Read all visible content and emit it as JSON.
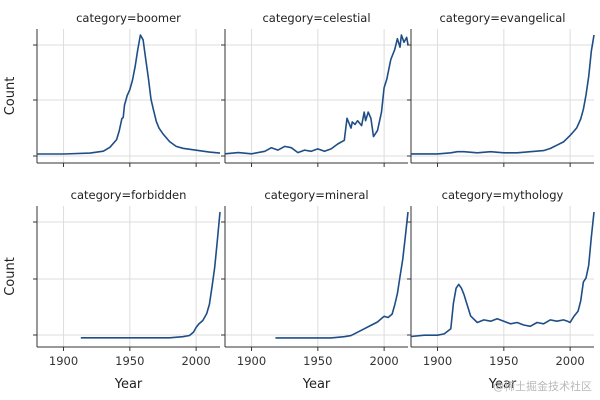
{
  "figure": {
    "ylabel": "Count",
    "xlabel": "Year",
    "line_color": "#1f4e86",
    "grid_color": "#dddddd",
    "watermark": "@稀土掘金技术社区"
  },
  "chart_data": [
    {
      "type": "line",
      "title": "category=boomer",
      "xlim": [
        1880,
        2018
      ],
      "x_ticks": [
        1900,
        1950,
        2000
      ],
      "y_ticks_shown": false,
      "series": [
        {
          "x": [
            1880,
            1900,
            1920,
            1930,
            1935,
            1940,
            1942,
            1944,
            1945,
            1946,
            1948,
            1950,
            1952,
            1954,
            1956,
            1958,
            1960,
            1962,
            1964,
            1966,
            1968,
            1970,
            1972,
            1975,
            1980,
            1985,
            1990,
            2000,
            2010,
            2018
          ],
          "y": [
            1,
            1,
            2,
            4,
            8,
            16,
            25,
            38,
            39,
            52,
            62,
            68,
            78,
            92,
            110,
            125,
            120,
            100,
            80,
            58,
            46,
            35,
            28,
            22,
            14,
            9,
            7,
            5,
            3,
            2
          ]
        }
      ]
    },
    {
      "type": "line",
      "title": "category=celestial",
      "xlim": [
        1880,
        2018
      ],
      "x_ticks": [
        1900,
        1950,
        2000
      ],
      "y_ticks_shown": false,
      "series": [
        {
          "x": [
            1880,
            1890,
            1900,
            1910,
            1915,
            1920,
            1925,
            1930,
            1935,
            1940,
            1945,
            1950,
            1955,
            1960,
            1965,
            1970,
            1972,
            1975,
            1976,
            1978,
            1980,
            1983,
            1985,
            1986,
            1988,
            1990,
            1992,
            1995,
            1998,
            2000,
            2002,
            2005,
            2008,
            2010,
            2012,
            2013,
            2015,
            2017,
            2018
          ],
          "y": [
            1,
            2,
            1,
            3,
            6,
            4,
            7,
            6,
            2,
            4,
            3,
            5,
            3,
            5,
            9,
            12,
            30,
            22,
            27,
            25,
            28,
            24,
            35,
            28,
            35,
            30,
            15,
            20,
            35,
            55,
            62,
            78,
            86,
            95,
            88,
            98,
            92,
            96,
            90
          ]
        }
      ]
    },
    {
      "type": "line",
      "title": "category=evangelical",
      "xlim": [
        1880,
        2018
      ],
      "x_ticks": [
        1900,
        1950,
        2000
      ],
      "y_ticks_shown": false,
      "series": [
        {
          "x": [
            1880,
            1900,
            1910,
            1915,
            1920,
            1930,
            1940,
            1950,
            1960,
            1970,
            1980,
            1985,
            1990,
            1995,
            2000,
            2003,
            2005,
            2008,
            2010,
            2012,
            2014,
            2016,
            2018
          ],
          "y": [
            1,
            1,
            2,
            3,
            3,
            2,
            3,
            2,
            2,
            3,
            4,
            6,
            9,
            12,
            18,
            22,
            25,
            33,
            42,
            55,
            72,
            95,
            110
          ]
        }
      ]
    },
    {
      "type": "line",
      "title": "category=forbidden",
      "xlim": [
        1880,
        2018
      ],
      "x_ticks": [
        1900,
        1950,
        2000
      ],
      "y_ticks_shown": false,
      "series": [
        {
          "x": [
            1913,
            1920,
            1930,
            1940,
            1950,
            1960,
            1970,
            1980,
            1990,
            1995,
            1998,
            2000,
            2002,
            2005,
            2008,
            2010,
            2012,
            2014,
            2016,
            2018
          ],
          "y": [
            1,
            1,
            1,
            1,
            1,
            1,
            1,
            1,
            2,
            3,
            6,
            10,
            13,
            16,
            22,
            30,
            45,
            62,
            85,
            110
          ]
        }
      ]
    },
    {
      "type": "line",
      "title": "category=mineral",
      "xlim": [
        1880,
        2018
      ],
      "x_ticks": [
        1900,
        1950,
        2000
      ],
      "y_ticks_shown": false,
      "series": [
        {
          "x": [
            1918,
            1930,
            1940,
            1950,
            1960,
            1970,
            1975,
            1980,
            1985,
            1990,
            1995,
            2000,
            2003,
            2006,
            2008,
            2010,
            2012,
            2014,
            2016,
            2018
          ],
          "y": [
            1,
            1,
            1,
            1,
            1,
            2,
            3,
            6,
            9,
            12,
            15,
            20,
            19,
            22,
            30,
            40,
            55,
            70,
            90,
            112
          ]
        }
      ]
    },
    {
      "type": "line",
      "title": "category=mythology",
      "xlim": [
        1880,
        2018
      ],
      "x_ticks": [
        1900,
        1950,
        2000
      ],
      "y_ticks_shown": false,
      "series": [
        {
          "x": [
            1880,
            1890,
            1900,
            1905,
            1910,
            1912,
            1914,
            1916,
            1918,
            1920,
            1922,
            1925,
            1930,
            1935,
            1940,
            1945,
            1950,
            1955,
            1960,
            1965,
            1970,
            1975,
            1980,
            1985,
            1990,
            1995,
            1998,
            2000,
            2003,
            2006,
            2008,
            2010,
            2012,
            2014,
            2016,
            2018
          ],
          "y": [
            2,
            3,
            3,
            4,
            8,
            28,
            40,
            43,
            40,
            35,
            28,
            18,
            13,
            15,
            14,
            16,
            14,
            12,
            13,
            11,
            10,
            13,
            12,
            15,
            14,
            15,
            14,
            13,
            18,
            22,
            30,
            45,
            48,
            58,
            80,
            100
          ]
        }
      ]
    }
  ]
}
